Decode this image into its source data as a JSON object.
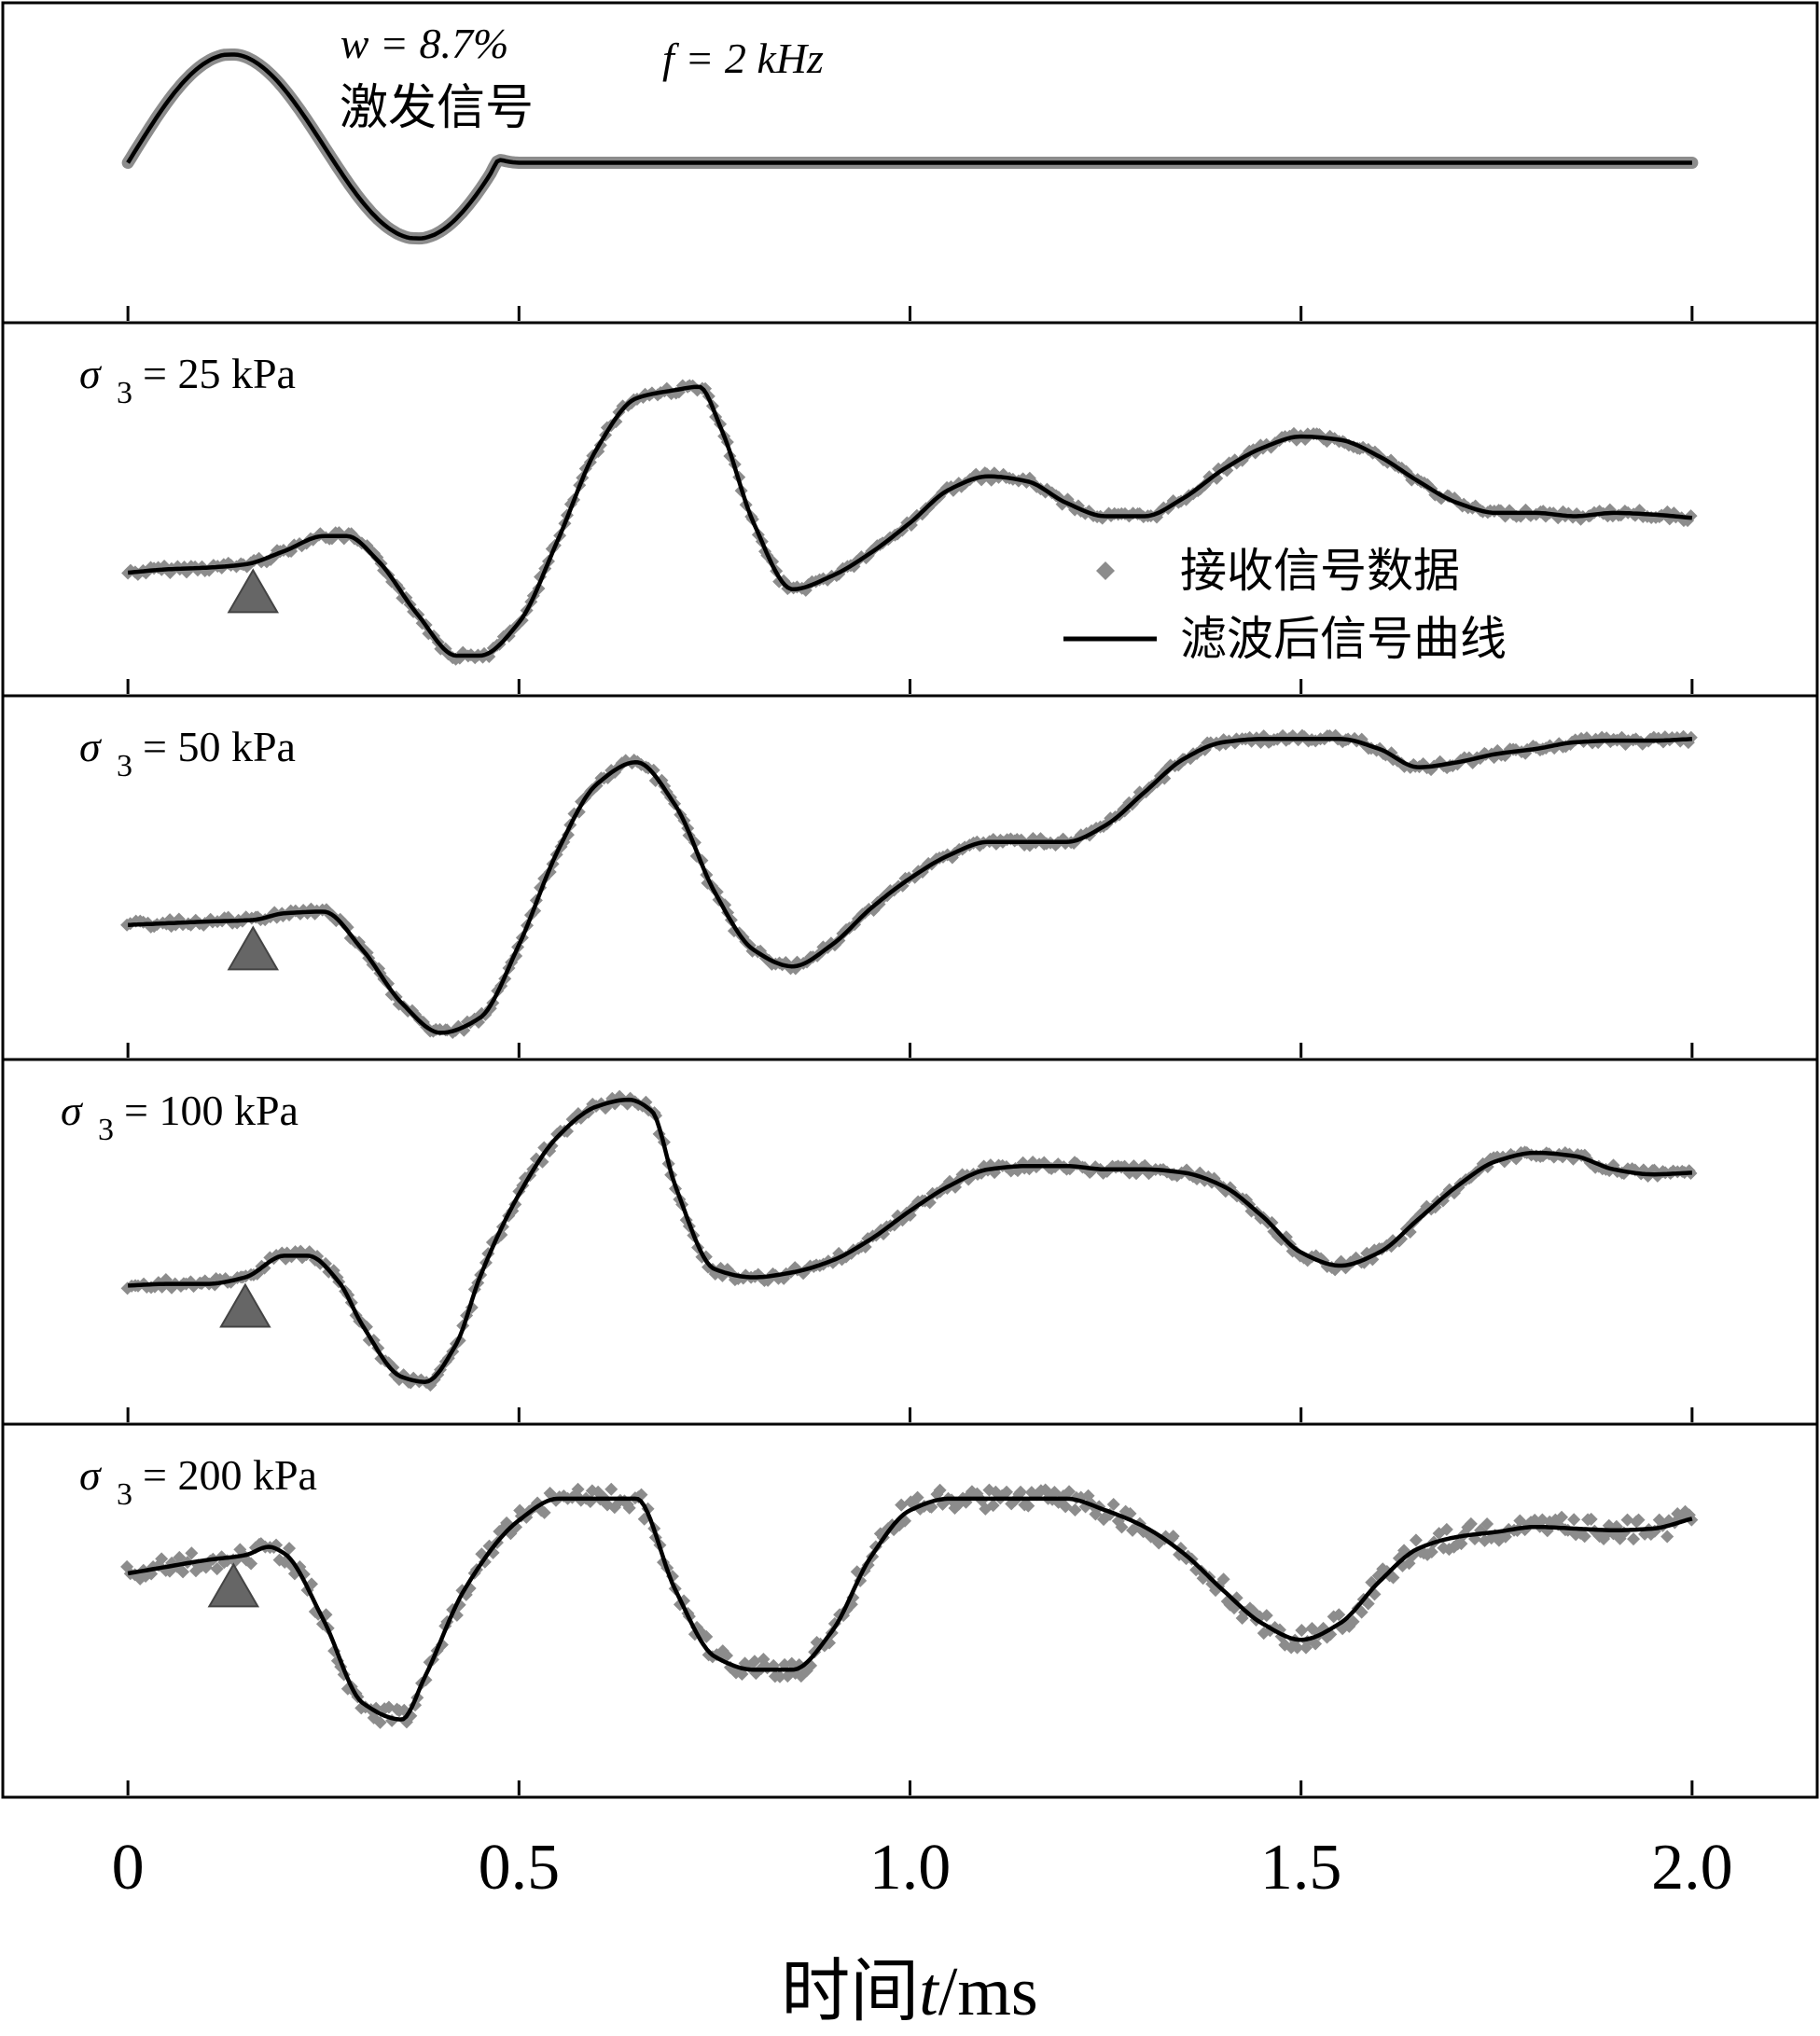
{
  "chart_data": {
    "type": "line",
    "xlabel": "时间t/ms",
    "xlabel_prefix": "时间",
    "xlabel_var": "t",
    "xlabel_unit": "/ms",
    "xlim": [
      -0.16,
      2.16
    ],
    "xticks": [
      "0",
      "0.5",
      "1.0",
      "1.5",
      "2.0"
    ],
    "xtick_values": [
      0,
      0.5,
      1.0,
      1.5,
      2.0
    ],
    "colors": {
      "data": "#8c8c8c",
      "filtered": "#000000",
      "triangle": "#666666",
      "frame": "#000000"
    },
    "legend": {
      "position": "inside panel 2, right",
      "items": [
        {
          "label": "接收信号数据",
          "marker": "gray-diamond"
        },
        {
          "label": "滤波后信号曲线",
          "marker": "black-line"
        }
      ]
    },
    "panels": [
      {
        "name": "excitation",
        "annotation_w": "w = 8.7%",
        "annotation_title": "激发信号",
        "annotation_f": "f = 2 kHz",
        "noise": 0,
        "onset_time": null,
        "x": [
          0,
          0.0125,
          0.025,
          0.0375,
          0.05,
          0.0625,
          0.075,
          0.0875,
          0.1,
          0.1125,
          0.125,
          0.1375,
          0.15,
          0.1625,
          0.175,
          0.1875,
          0.2,
          0.2125,
          0.225,
          0.2375,
          0.25,
          0.2625,
          0.275,
          0.2875,
          0.3,
          0.3125,
          0.325,
          0.3375,
          0.35,
          0.3625,
          0.375,
          0.3875,
          0.4,
          0.4125,
          0.425,
          0.4375,
          0.45,
          0.4625,
          0.475,
          0.4875,
          0.5,
          0.6,
          0.8,
          1.0,
          1.2,
          1.4,
          1.6,
          1.8,
          2.0
        ],
        "y": [
          0,
          0.144,
          0.285,
          0.421,
          0.548,
          0.663,
          0.764,
          0.848,
          0.913,
          0.958,
          0.982,
          0.983,
          0.962,
          0.917,
          0.852,
          0.768,
          0.667,
          0.552,
          0.427,
          0.294,
          0.157,
          0.02,
          -0.114,
          -0.241,
          -0.358,
          -0.461,
          -0.547,
          -0.614,
          -0.661,
          -0.685,
          -0.687,
          -0.666,
          -0.622,
          -0.556,
          -0.469,
          -0.365,
          -0.245,
          -0.113,
          0.025,
          0.009,
          0,
          0,
          0,
          0,
          0,
          0,
          0,
          0,
          0
        ]
      },
      {
        "name": "sigma3-25",
        "label_sigma": "σ",
        "label_sub": "3",
        "label_value": "= 25 kPa",
        "noise": 0.02,
        "onset_time": 0.16,
        "x": [
          0,
          0.05,
          0.1,
          0.15,
          0.2,
          0.25,
          0.28,
          0.32,
          0.37,
          0.42,
          0.45,
          0.5,
          0.55,
          0.6,
          0.65,
          0.7,
          0.73,
          0.76,
          0.8,
          0.85,
          0.9,
          0.95,
          1.0,
          1.05,
          1.1,
          1.15,
          1.2,
          1.25,
          1.3,
          1.35,
          1.4,
          1.45,
          1.5,
          1.55,
          1.6,
          1.65,
          1.7,
          1.75,
          1.8,
          1.85,
          1.9,
          1.95,
          2.0
        ],
        "y": [
          0,
          0.02,
          0.03,
          0.05,
          0.13,
          0.22,
          0.22,
          0.07,
          -0.25,
          -0.5,
          -0.5,
          -0.3,
          0.2,
          0.75,
          1.05,
          1.1,
          1.12,
          0.85,
          0.3,
          -0.1,
          -0.02,
          0.12,
          0.3,
          0.5,
          0.58,
          0.55,
          0.42,
          0.34,
          0.34,
          0.45,
          0.62,
          0.75,
          0.82,
          0.8,
          0.7,
          0.55,
          0.42,
          0.36,
          0.36,
          0.34,
          0.36,
          0.35,
          0.33
        ]
      },
      {
        "name": "sigma3-50",
        "label_sigma": "σ",
        "label_sub": "3",
        "label_value": "= 50 kPa",
        "noise": 0.02,
        "onset_time": 0.16,
        "x": [
          0,
          0.05,
          0.1,
          0.16,
          0.2,
          0.25,
          0.3,
          0.35,
          0.4,
          0.45,
          0.5,
          0.55,
          0.6,
          0.65,
          0.7,
          0.75,
          0.8,
          0.85,
          0.9,
          0.95,
          1.0,
          1.05,
          1.1,
          1.15,
          1.2,
          1.25,
          1.3,
          1.35,
          1.4,
          1.45,
          1.5,
          1.55,
          1.6,
          1.65,
          1.7,
          1.75,
          1.8,
          1.85,
          1.9,
          1.95,
          2.0
        ],
        "y": [
          0,
          0.01,
          0.02,
          0.03,
          0.07,
          0.08,
          -0.15,
          -0.47,
          -0.65,
          -0.56,
          -0.12,
          0.45,
          0.85,
          0.98,
          0.72,
          0.2,
          -0.15,
          -0.25,
          -0.12,
          0.1,
          0.28,
          0.42,
          0.5,
          0.5,
          0.5,
          0.6,
          0.8,
          1.0,
          1.1,
          1.12,
          1.12,
          1.12,
          1.06,
          0.95,
          0.98,
          1.03,
          1.06,
          1.1,
          1.11,
          1.11,
          1.12
        ]
      },
      {
        "name": "sigma3-100",
        "label_sigma": "σ",
        "label_sub": "3",
        "label_value": "= 100 kPa",
        "noise": 0.025,
        "onset_time": 0.15,
        "x": [
          0,
          0.05,
          0.1,
          0.15,
          0.2,
          0.23,
          0.27,
          0.3,
          0.35,
          0.38,
          0.42,
          0.45,
          0.5,
          0.55,
          0.6,
          0.64,
          0.67,
          0.7,
          0.75,
          0.8,
          0.85,
          0.9,
          0.95,
          1.0,
          1.05,
          1.1,
          1.15,
          1.2,
          1.25,
          1.3,
          1.35,
          1.4,
          1.45,
          1.5,
          1.55,
          1.6,
          1.65,
          1.7,
          1.75,
          1.8,
          1.85,
          1.9,
          1.95,
          2.0
        ],
        "y": [
          0,
          0.01,
          0.01,
          0.05,
          0.18,
          0.18,
          0.02,
          -0.24,
          -0.55,
          -0.58,
          -0.35,
          0.05,
          0.55,
          0.9,
          1.08,
          1.12,
          1.05,
          0.6,
          0.1,
          0.05,
          0.08,
          0.15,
          0.28,
          0.45,
          0.6,
          0.7,
          0.72,
          0.72,
          0.7,
          0.7,
          0.68,
          0.6,
          0.42,
          0.2,
          0.12,
          0.2,
          0.4,
          0.6,
          0.75,
          0.8,
          0.78,
          0.7,
          0.67,
          0.68
        ]
      },
      {
        "name": "sigma3-200",
        "label_sigma": "σ",
        "label_sub": "3",
        "label_value": "= 200 kPa",
        "noise": 0.06,
        "onset_time": 0.135,
        "x": [
          0,
          0.05,
          0.1,
          0.15,
          0.18,
          0.2,
          0.25,
          0.3,
          0.35,
          0.38,
          0.43,
          0.5,
          0.55,
          0.6,
          0.65,
          0.7,
          0.75,
          0.8,
          0.85,
          0.9,
          0.95,
          1.0,
          1.05,
          1.1,
          1.15,
          1.2,
          1.25,
          1.3,
          1.35,
          1.4,
          1.45,
          1.5,
          1.55,
          1.6,
          1.65,
          1.7,
          1.75,
          1.8,
          1.85,
          1.9,
          1.95,
          2.0
        ],
        "y": [
          0,
          0.04,
          0.08,
          0.11,
          0.16,
          0.12,
          -0.28,
          -0.78,
          -0.88,
          -0.62,
          -0.1,
          0.32,
          0.45,
          0.45,
          0.45,
          -0.1,
          -0.5,
          -0.58,
          -0.58,
          -0.35,
          0.1,
          0.38,
          0.45,
          0.45,
          0.45,
          0.45,
          0.38,
          0.28,
          0.12,
          -0.1,
          -0.3,
          -0.4,
          -0.3,
          -0.05,
          0.15,
          0.22,
          0.25,
          0.28,
          0.27,
          0.26,
          0.27,
          0.33
        ]
      }
    ]
  }
}
